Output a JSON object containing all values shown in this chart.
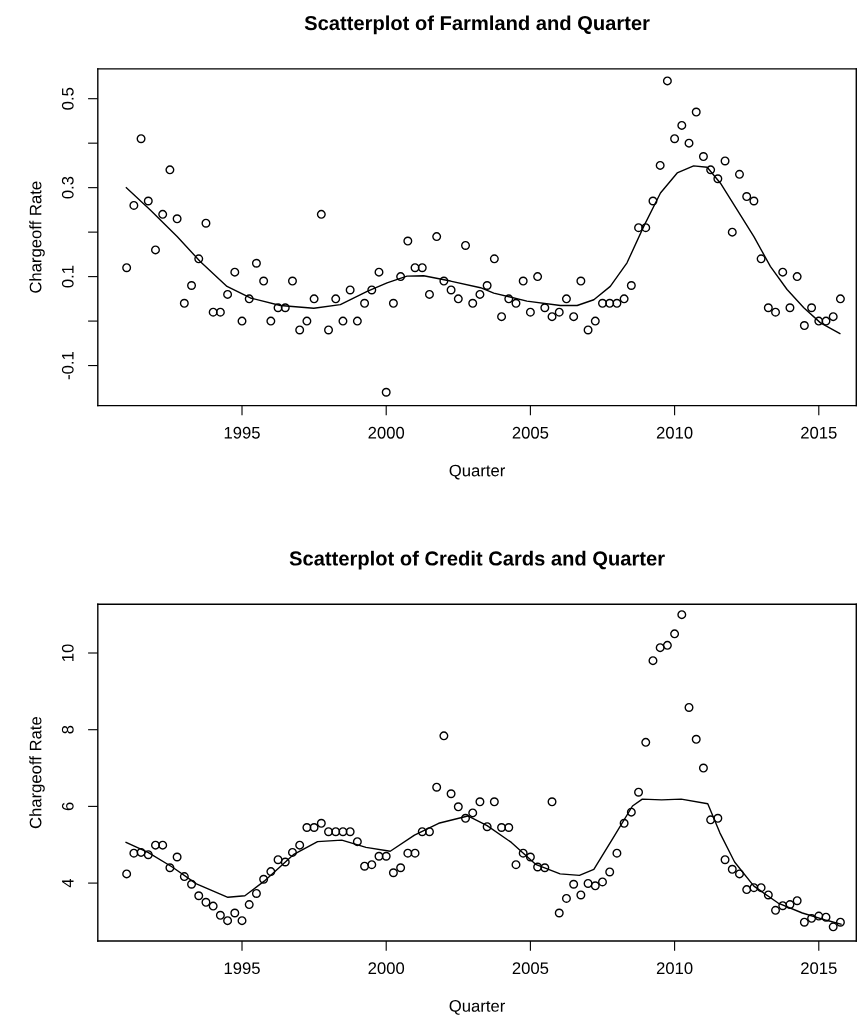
{
  "chart_data": [
    {
      "type": "scatter",
      "title": "Scatterplot of Farmland and Quarter",
      "xlabel": "Quarter",
      "ylabel": "Chargeoff Rate",
      "xlim": [
        1990.0,
        2016.3
      ],
      "xticks": [
        1995,
        2000,
        2005,
        2010,
        2015
      ],
      "ylim": [
        -0.19,
        0.567
      ],
      "yticks": [
        -0.1,
        {
          "value": 0.0,
          "label": null
        },
        0.1,
        {
          "value": 0.2,
          "label": null
        },
        0.3,
        {
          "value": 0.4,
          "label": null
        },
        0.5
      ],
      "grid": false,
      "marker": "circle",
      "series": [
        {
          "color": "#000000",
          "x": [
            1991.0,
            1991.25,
            1991.5,
            1991.75,
            1992.0,
            1992.25,
            1992.5,
            1992.75,
            1993.0,
            1993.25,
            1993.5,
            1993.75,
            1994.0,
            1994.25,
            1994.5,
            1994.75,
            1995.0,
            1995.25,
            1995.5,
            1995.75,
            1996.0,
            1996.25,
            1996.5,
            1996.75,
            1997.0,
            1997.25,
            1997.5,
            1997.75,
            1998.0,
            1998.25,
            1998.5,
            1998.75,
            1999.0,
            1999.25,
            1999.5,
            1999.75,
            2000.0,
            2000.25,
            2000.5,
            2000.75,
            2001.0,
            2001.25,
            2001.5,
            2001.75,
            2002.0,
            2002.25,
            2002.5,
            2002.75,
            2003.0,
            2003.25,
            2003.5,
            2003.75,
            2004.0,
            2004.25,
            2004.5,
            2004.75,
            2005.0,
            2005.25,
            2005.5,
            2005.75,
            2006.0,
            2006.25,
            2006.5,
            2006.75,
            2007.0,
            2007.25,
            2007.5,
            2007.75,
            2008.0,
            2008.25,
            2008.5,
            2008.75,
            2009.0,
            2009.25,
            2009.5,
            2009.75,
            2010.0,
            2010.25,
            2010.5,
            2010.75,
            2011.0,
            2011.25,
            2011.5,
            2011.75,
            2012.0,
            2012.25,
            2012.5,
            2012.75,
            2013.0,
            2013.25,
            2013.5,
            2013.75,
            2014.0,
            2014.25,
            2014.5,
            2014.75,
            2015.0,
            2015.25,
            2015.5,
            2015.75
          ],
          "values": [
            0.12,
            0.26,
            0.41,
            0.27,
            0.16,
            0.24,
            0.34,
            0.23,
            0.04,
            0.08,
            0.14,
            0.22,
            0.02,
            0.02,
            0.06,
            0.11,
            0.0,
            0.05,
            0.13,
            0.09,
            0.0,
            0.03,
            0.03,
            0.09,
            -0.02,
            0.0,
            0.05,
            0.24,
            -0.02,
            0.05,
            0.0,
            0.07,
            0.0,
            0.04,
            0.07,
            0.11,
            -0.16,
            0.04,
            0.1,
            0.18,
            0.12,
            0.12,
            0.06,
            0.19,
            0.09,
            0.07,
            0.05,
            0.17,
            0.04,
            0.06,
            0.08,
            0.14,
            0.01,
            0.05,
            0.04,
            0.09,
            0.02,
            0.1,
            0.03,
            0.01,
            0.02,
            0.05,
            0.01,
            0.09,
            -0.02,
            0.0,
            0.04,
            0.04,
            0.04,
            0.05,
            0.08,
            0.21,
            0.21,
            0.27,
            0.35,
            0.54,
            0.41,
            0.44,
            0.4,
            0.47,
            0.37,
            0.34,
            0.32,
            0.36,
            0.2,
            0.33,
            0.28,
            0.27,
            0.14,
            0.03,
            0.02,
            0.11,
            0.03,
            0.1,
            -0.01,
            0.03,
            0.0,
            0.0,
            0.01,
            0.05
          ]
        },
        {
          "type": "line",
          "color": "#000000",
          "marker": "none",
          "line_style": "solid",
          "x": [
            1990.99,
            1991.82,
            1992.75,
            1993.55,
            1994.48,
            1995.29,
            1996.33,
            1997.49,
            1998.41,
            1999.34,
            2000.03,
            2000.72,
            2001.3,
            2002.23,
            2003.27,
            2003.73,
            2004.88,
            2006.04,
            2006.62,
            2007.2,
            2007.77,
            2008.35,
            2008.93,
            2009.51,
            2010.09,
            2010.66,
            2011.13,
            2011.59,
            2012.17,
            2012.75,
            2013.32,
            2013.9,
            2014.48,
            2015.06,
            2015.73
          ],
          "values": [
            0.3,
            0.25,
            0.19,
            0.134,
            0.078,
            0.052,
            0.035,
            0.029,
            0.037,
            0.067,
            0.086,
            0.101,
            0.102,
            0.09,
            0.075,
            0.063,
            0.045,
            0.035,
            0.035,
            0.048,
            0.078,
            0.131,
            0.213,
            0.288,
            0.333,
            0.349,
            0.346,
            0.31,
            0.25,
            0.19,
            0.123,
            0.071,
            0.03,
            -0.004,
            -0.028
          ]
        }
      ]
    },
    {
      "type": "scatter",
      "title": "Scatterplot of Credit Cards and Quarter",
      "xlabel": "Quarter",
      "ylabel": "Chargeoff Rate",
      "xlim": [
        1990.0,
        2016.3
      ],
      "xticks": [
        1995,
        2000,
        2005,
        2010,
        2015
      ],
      "ylim": [
        2.49,
        11.27
      ],
      "yticks": [
        4,
        6,
        8,
        10
      ],
      "grid": false,
      "marker": "circle",
      "series": [
        {
          "color": "#000000",
          "x": [
            1991.0,
            1991.25,
            1991.5,
            1991.75,
            1992.0,
            1992.25,
            1992.5,
            1992.75,
            1993.0,
            1993.25,
            1993.5,
            1993.75,
            1994.0,
            1994.25,
            1994.5,
            1994.75,
            1995.0,
            1995.25,
            1995.5,
            1995.75,
            1996.0,
            1996.25,
            1996.5,
            1996.75,
            1997.0,
            1997.25,
            1997.5,
            1997.75,
            1998.0,
            1998.25,
            1998.5,
            1998.75,
            1999.0,
            1999.25,
            1999.5,
            1999.75,
            2000.0,
            2000.25,
            2000.5,
            2000.75,
            2001.0,
            2001.25,
            2001.5,
            2001.75,
            2002.0,
            2002.25,
            2002.5,
            2002.75,
            2003.0,
            2003.25,
            2003.5,
            2003.75,
            2004.0,
            2004.25,
            2004.5,
            2004.75,
            2005.0,
            2005.25,
            2005.5,
            2005.75,
            2006.0,
            2006.25,
            2006.5,
            2006.75,
            2007.0,
            2007.25,
            2007.5,
            2007.75,
            2008.0,
            2008.25,
            2008.5,
            2008.75,
            2009.0,
            2009.25,
            2009.5,
            2009.75,
            2010.0,
            2010.25,
            2010.5,
            2010.75,
            2011.0,
            2011.25,
            2011.5,
            2011.75,
            2012.0,
            2012.25,
            2012.5,
            2012.75,
            2013.0,
            2013.25,
            2013.5,
            2013.75,
            2014.0,
            2014.25,
            2014.5,
            2014.75,
            2015.0,
            2015.25,
            2015.5,
            2015.75
          ],
          "values": [
            4.24,
            4.78,
            4.8,
            4.74,
            4.99,
            4.99,
            4.4,
            4.68,
            4.17,
            3.97,
            3.67,
            3.5,
            3.4,
            3.16,
            3.02,
            3.22,
            3.02,
            3.44,
            3.73,
            4.1,
            4.3,
            4.61,
            4.55,
            4.8,
            4.99,
            5.45,
            5.45,
            5.56,
            5.34,
            5.34,
            5.34,
            5.34,
            5.08,
            4.44,
            4.48,
            4.7,
            4.7,
            4.27,
            4.4,
            4.78,
            4.78,
            5.34,
            5.34,
            6.5,
            7.84,
            6.33,
            5.99,
            5.69,
            5.83,
            6.12,
            5.47,
            6.12,
            5.45,
            5.45,
            4.48,
            4.78,
            4.68,
            4.42,
            4.4,
            6.12,
            3.22,
            3.6,
            3.97,
            3.69,
            3.99,
            3.93,
            4.03,
            4.29,
            4.78,
            5.56,
            5.85,
            6.37,
            7.67,
            9.8,
            10.14,
            10.2,
            10.5,
            11.0,
            8.58,
            7.75,
            7.0,
            5.65,
            5.69,
            4.61,
            4.36,
            4.24,
            3.83,
            3.88,
            3.88,
            3.69,
            3.29,
            3.41,
            3.44,
            3.54,
            2.98,
            3.08,
            3.14,
            3.11,
            2.86,
            2.98
          ]
        },
        {
          "type": "line",
          "color": "#000000",
          "marker": "none",
          "line_style": "solid",
          "x": [
            1990.98,
            1991.74,
            1992.58,
            1993.42,
            1994.51,
            1995.1,
            1995.77,
            1996.78,
            1997.62,
            1998.46,
            1999.3,
            2000.14,
            2000.98,
            2001.82,
            2002.83,
            2003.5,
            2004.34,
            2005.18,
            2006.03,
            2006.7,
            2007.2,
            2007.87,
            2008.54,
            2008.88,
            2009.55,
            2010.23,
            2011.15,
            2011.57,
            2012.08,
            2012.75,
            2013.59,
            2014.43,
            2015.27,
            2015.77
          ],
          "values": [
            5.06,
            4.8,
            4.42,
            3.98,
            3.63,
            3.67,
            4.05,
            4.74,
            5.08,
            5.12,
            4.93,
            4.83,
            5.25,
            5.56,
            5.75,
            5.5,
            5.06,
            4.49,
            4.24,
            4.2,
            4.36,
            5.18,
            6.01,
            6.19,
            6.17,
            6.19,
            6.07,
            5.31,
            4.55,
            3.92,
            3.48,
            3.22,
            3.03,
            2.93
          ]
        }
      ]
    }
  ]
}
